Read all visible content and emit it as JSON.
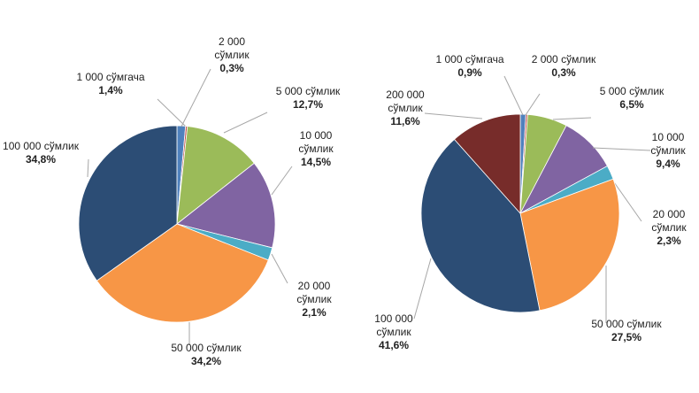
{
  "chart_data": [
    {
      "type": "pie",
      "title": "",
      "categories": [
        "1 000 сўмгача",
        "2 000 сўмлик",
        "5 000 сўмлик",
        "10 000 сўмлик",
        "20 000 сўмлик",
        "50 000 сўмлик",
        "100 000 сўмлик"
      ],
      "values": [
        1.4,
        0.3,
        12.7,
        14.5,
        2.1,
        34.2,
        34.8
      ],
      "value_labels": [
        "1,4%",
        "0,3%",
        "12,7%",
        "14,5%",
        "2,1%",
        "34,2%",
        "34,8%"
      ],
      "colors": [
        "#4f81bd",
        "#c0504d",
        "#9bbb59",
        "#8064a2",
        "#4bacc6",
        "#f79646",
        "#2c4d75"
      ],
      "start": "12 o'clock, clockwise"
    },
    {
      "type": "pie",
      "title": "",
      "categories": [
        "1 000 сўмгача",
        "2 000 сўмлик",
        "5 000 сўмлик",
        "10 000 сўмлик",
        "20 000 сўмлик",
        "50 000 сўмлик",
        "100 000 сўмлик",
        "200 000 сўмлик"
      ],
      "values": [
        0.9,
        0.3,
        6.5,
        9.4,
        2.3,
        27.5,
        41.6,
        11.6
      ],
      "value_labels": [
        "0,9%",
        "0,3%",
        "6,5%",
        "9,4%",
        "2,3%",
        "27,5%",
        "41,6%",
        "11,6%"
      ],
      "colors": [
        "#4f81bd",
        "#c0504d",
        "#9bbb59",
        "#8064a2",
        "#4bacc6",
        "#f79646",
        "#2c4d75",
        "#772c2a"
      ],
      "start": "12 o'clock, clockwise"
    }
  ]
}
